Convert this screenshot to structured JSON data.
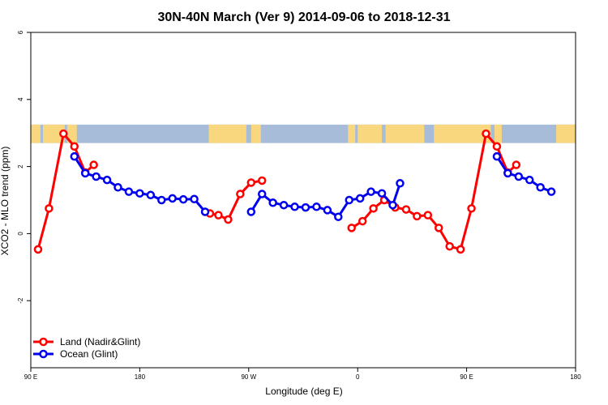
{
  "chart_data": {
    "type": "line",
    "title": "30N-40N March (Ver 9)   2014-09-06 to 2018-12-31",
    "xlabel": "Longitude (deg E)",
    "ylabel": "XCO2 - MLO trend (ppm)",
    "xlim": [
      90,
      540
    ],
    "ylim": [
      -4,
      6
    ],
    "x_ticks": [
      {
        "value": 90,
        "label": "90 E"
      },
      {
        "value": 180,
        "label": "180"
      },
      {
        "value": 270,
        "label": "90 W"
      },
      {
        "value": 360,
        "label": "0"
      },
      {
        "value": 450,
        "label": "90 E"
      },
      {
        "value": 540,
        "label": "180"
      }
    ],
    "y_ticks": [
      {
        "value": -2,
        "label": "-2"
      },
      {
        "value": 0,
        "label": "0"
      },
      {
        "value": 2,
        "label": "2"
      },
      {
        "value": 4,
        "label": "4"
      },
      {
        "value": 6,
        "label": "6"
      }
    ],
    "map_strip": {
      "ymin": 2.7,
      "ymax": 3.25,
      "ocean_color": "#a7bcd9",
      "land_color": "#f9d77e"
    },
    "legend_position": "bottom-left",
    "series": [
      {
        "name": "Land (Nadir&Glint)",
        "color": "#ff0000",
        "segments": [
          [
            [
              96,
              -0.47
            ],
            [
              105,
              0.75
            ],
            [
              117,
              2.98
            ],
            [
              126,
              2.6
            ],
            [
              135,
              1.82
            ],
            [
              142,
              2.05
            ]
          ],
          [
            [
              238,
              0.6
            ],
            [
              245,
              0.55
            ],
            [
              253,
              0.42
            ],
            [
              263,
              1.18
            ],
            [
              272,
              1.52
            ],
            [
              281,
              1.58
            ]
          ],
          [
            [
              355,
              0.17
            ],
            [
              364,
              0.37
            ],
            [
              373,
              0.75
            ],
            [
              382,
              1.0
            ],
            [
              391,
              0.78
            ],
            [
              400,
              0.72
            ],
            [
              409,
              0.52
            ],
            [
              418,
              0.55
            ],
            [
              427,
              0.17
            ],
            [
              436,
              -0.38
            ],
            [
              445,
              -0.47
            ],
            [
              454,
              0.75
            ],
            [
              466,
              2.98
            ],
            [
              475,
              2.6
            ],
            [
              484,
              1.82
            ],
            [
              491,
              2.05
            ]
          ]
        ]
      },
      {
        "name": "Ocean (Glint)",
        "color": "#0000ee",
        "segments": [
          [
            [
              126,
              2.3
            ],
            [
              135,
              1.8
            ],
            [
              144,
              1.7
            ],
            [
              153,
              1.6
            ],
            [
              162,
              1.38
            ],
            [
              171,
              1.25
            ],
            [
              180,
              1.2
            ],
            [
              189,
              1.15
            ],
            [
              198,
              1.0
            ],
            [
              207,
              1.05
            ],
            [
              216,
              1.02
            ],
            [
              225,
              1.03
            ],
            [
              234,
              0.65
            ]
          ],
          [
            [
              272,
              0.65
            ],
            [
              281,
              1.18
            ],
            [
              290,
              0.92
            ],
            [
              299,
              0.85
            ],
            [
              308,
              0.8
            ],
            [
              317,
              0.78
            ],
            [
              326,
              0.8
            ],
            [
              335,
              0.7
            ],
            [
              344,
              0.5
            ],
            [
              353,
              1.0
            ],
            [
              362,
              1.05
            ],
            [
              371,
              1.25
            ],
            [
              380,
              1.2
            ],
            [
              389,
              0.85
            ],
            [
              395,
              1.5
            ]
          ],
          [
            [
              475,
              2.3
            ],
            [
              484,
              1.8
            ],
            [
              493,
              1.7
            ],
            [
              502,
              1.6
            ],
            [
              511,
              1.38
            ],
            [
              520,
              1.25
            ]
          ]
        ]
      }
    ]
  }
}
